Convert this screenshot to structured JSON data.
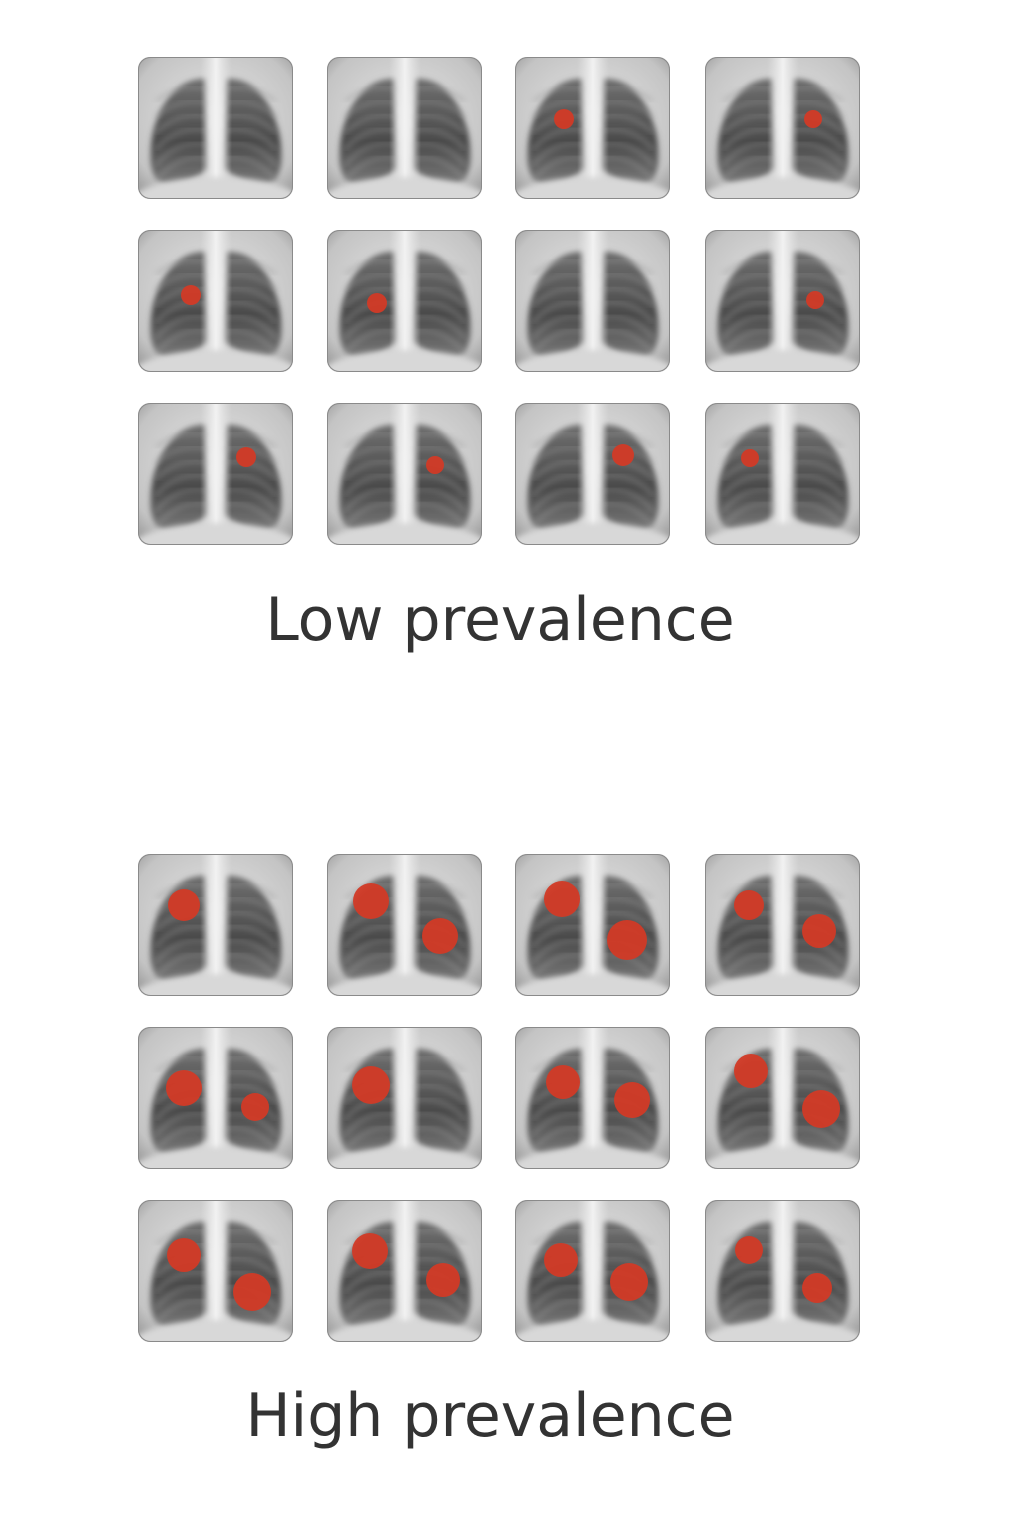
{
  "panels": [
    {
      "label": "Low prevalence"
    },
    {
      "label": "High prevalence"
    }
  ]
}
